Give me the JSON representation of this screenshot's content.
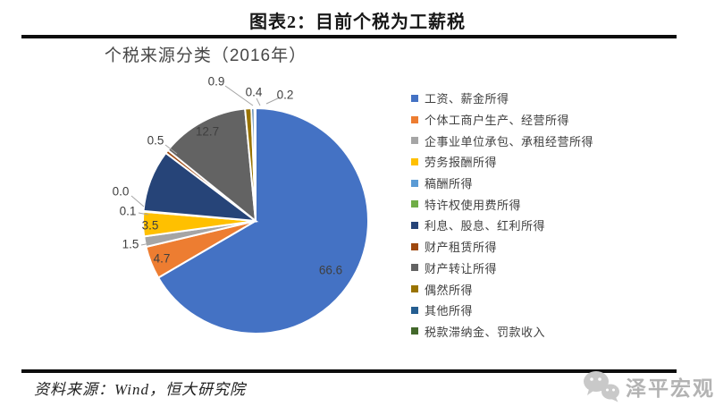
{
  "page": {
    "header_title": "图表2：目前个税为工薪税",
    "source_note": "资料来源：Wind，恒大研究院",
    "watermark_text": "泽平宏观"
  },
  "chart_data": {
    "type": "pie",
    "title": "个税来源分类（2016年）",
    "unit": "%",
    "total": 100.0,
    "direction": "clockwise",
    "start_angle_deg": 0,
    "legend_position": "right",
    "slices": [
      {
        "label": "工资、薪金所得",
        "value": 66.6,
        "color": "#4472C4",
        "data_label": "66.6",
        "label_placement": "inside"
      },
      {
        "label": "个体工商户生产、经营所得",
        "value": 4.7,
        "color": "#ED7D31",
        "data_label": "4.7",
        "label_placement": "inside"
      },
      {
        "label": "企事业单位承包、承租经营所得",
        "value": 1.5,
        "color": "#A5A5A5",
        "data_label": "1.5",
        "label_placement": "outside"
      },
      {
        "label": "劳务报酬所得",
        "value": 3.5,
        "color": "#FFC000",
        "data_label": "3.5",
        "label_placement": "inside"
      },
      {
        "label": "稿酬所得",
        "value": 0.1,
        "color": "#5B9BD5",
        "data_label": "0.1",
        "label_placement": "outside"
      },
      {
        "label": "特许权使用费所得",
        "value": 0.0,
        "color": "#70AD47",
        "data_label": "0.0",
        "label_placement": "outside"
      },
      {
        "label": "利息、股息、红利所得",
        "value": 8.9,
        "color": "#264478",
        "data_label": "",
        "label_placement": "none"
      },
      {
        "label": "财产租赁所得",
        "value": 0.5,
        "color": "#9E480E",
        "data_label": "0.5",
        "label_placement": "outside"
      },
      {
        "label": "财产转让所得",
        "value": 12.7,
        "color": "#636363",
        "data_label": "12.7",
        "label_placement": "inside"
      },
      {
        "label": "偶然所得",
        "value": 0.9,
        "color": "#997300",
        "data_label": "0.9",
        "label_placement": "outside"
      },
      {
        "label": "其他所得",
        "value": 0.4,
        "color": "#255E91",
        "data_label": "0.4",
        "label_placement": "outside"
      },
      {
        "label": "税款滞纳金、罚款收入",
        "value": 0.2,
        "color": "#43682B",
        "data_label": "0.2",
        "label_placement": "outside"
      }
    ]
  }
}
